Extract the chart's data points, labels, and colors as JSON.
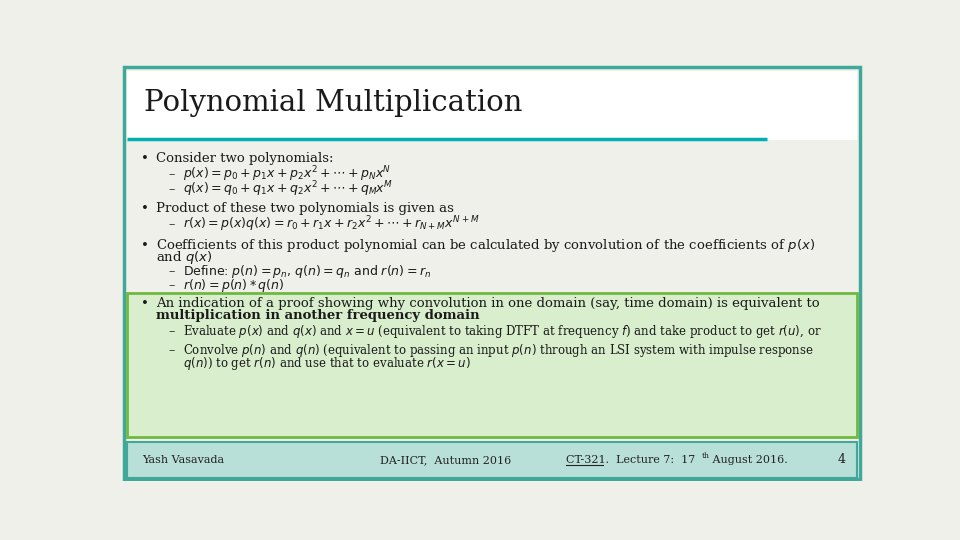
{
  "title": "Polynomial Multiplication",
  "bg_color": "#f0f0eb",
  "title_color": "#1a1a1a",
  "title_underline_color": "#00b0b0",
  "highlight_box_color": "#d8eecc",
  "highlight_box_border": "#70b840",
  "footer_bg": "#b8e0d8",
  "footer_border": "#40a898",
  "footer_left": "Yash Vasavada",
  "footer_center": "DA-IICT,  Autumn 2016",
  "footer_right_pre": "CT-321.  Lecture 7:  17",
  "footer_right_super": "th",
  "footer_right_end": " August 2016.",
  "footer_num": "4",
  "text_color": "#1a1a1a",
  "outer_border_color": "#40a898"
}
